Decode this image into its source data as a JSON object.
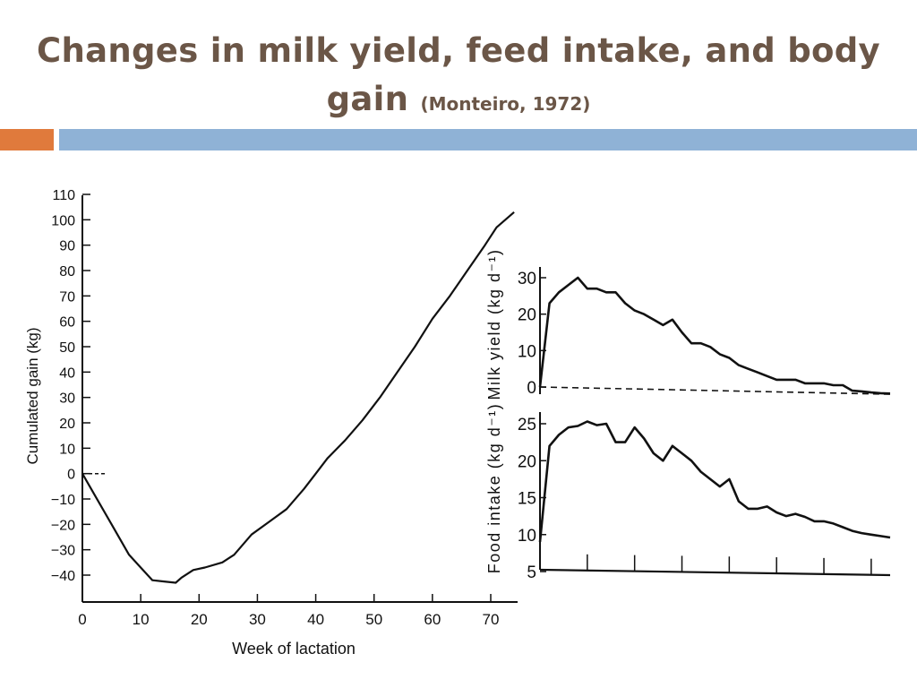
{
  "slide": {
    "title": "Changes in milk yield, feed intake, and body gain",
    "citation": "(Monteiro, 1972)",
    "colors": {
      "title": "#6b5647",
      "accent_bar": "#e07a3c",
      "main_bar": "#8fb2d6"
    }
  },
  "chart_data": [
    {
      "type": "line",
      "title": "",
      "xlabel": "Week of lactation",
      "ylabel": "Cumulated gain (kg)",
      "xlim": [
        0,
        74
      ],
      "ylim": [
        -45,
        110
      ],
      "xticks": [
        "0",
        "10",
        "20",
        "30",
        "40",
        "50",
        "60",
        "70"
      ],
      "yticks": [
        "110",
        "100",
        "90",
        "80",
        "70",
        "60",
        "50",
        "40",
        "30",
        "20",
        "10",
        "0",
        "−10",
        "−20",
        "−30",
        "−40"
      ],
      "series": [
        {
          "name": "",
          "x": [
            0,
            2,
            5,
            8,
            10,
            12,
            14,
            16,
            17,
            19,
            21,
            24,
            26,
            29,
            32,
            35,
            38,
            40,
            42,
            45,
            48,
            51,
            54,
            57,
            60,
            63,
            66,
            69,
            71,
            74
          ],
          "y": [
            0,
            -8,
            -20,
            -32,
            -37,
            -42,
            -42.5,
            -43,
            -41,
            -38,
            -37,
            -35,
            -32,
            -24,
            -19,
            -14,
            -6,
            0,
            6,
            13,
            21,
            30,
            40,
            50,
            61,
            70,
            80,
            90,
            97,
            103
          ]
        },
        {
          "name": "",
          "style": "dashed",
          "x": [
            0,
            4
          ],
          "y": [
            0,
            0
          ]
        }
      ]
    },
    {
      "type": "line",
      "title": "",
      "xlabel": "",
      "ylabel": "Milk yield (kg d⁻¹)",
      "ylim": [
        0,
        30
      ],
      "yticks": [
        "30",
        "20",
        "10",
        "0"
      ],
      "series": [
        {
          "name": "",
          "x": [
            0,
            2,
            4,
            6,
            8,
            10,
            12,
            14,
            16,
            18,
            20,
            22,
            24,
            26,
            28,
            30,
            32,
            34,
            36,
            38,
            40,
            42,
            44,
            46,
            48,
            50,
            52,
            54,
            56,
            58,
            60,
            62,
            64,
            66,
            68,
            70,
            72,
            74
          ],
          "y": [
            0,
            23,
            26,
            28,
            30,
            27,
            27,
            26,
            26,
            23,
            21,
            20,
            18.5,
            17,
            18.5,
            15,
            12,
            12,
            11,
            9,
            8,
            6,
            5,
            4,
            3,
            2,
            2,
            2,
            1,
            1,
            1,
            0.5,
            0.5,
            -1,
            -1.2,
            -1.5,
            -1.7,
            -1.8
          ]
        },
        {
          "name": "",
          "style": "dashed",
          "x": [
            0,
            74
          ],
          "y": [
            0,
            -2
          ]
        }
      ]
    },
    {
      "type": "line",
      "title": "",
      "xlabel": "",
      "ylabel": "Food intake (kg d⁻¹)",
      "ylim": [
        5,
        25
      ],
      "yticks": [
        "25",
        "20",
        "15",
        "10",
        "5"
      ],
      "series": [
        {
          "name": "",
          "x": [
            0,
            2,
            4,
            6,
            8,
            10,
            12,
            14,
            16,
            18,
            20,
            22,
            24,
            26,
            28,
            30,
            32,
            34,
            36,
            38,
            40,
            42,
            44,
            46,
            48,
            50,
            52,
            54,
            56,
            58,
            60,
            62,
            64,
            66,
            68,
            70,
            72,
            74
          ],
          "y": [
            9,
            22,
            23.5,
            24.5,
            24.7,
            25.3,
            24.8,
            25.0,
            22.5,
            22.5,
            24.5,
            23,
            21,
            20,
            22,
            21,
            20,
            18.5,
            17.5,
            16.5,
            17.5,
            14.5,
            13.5,
            13.5,
            13.8,
            13,
            12.5,
            12.8,
            12.4,
            11.8,
            11.8,
            11.5,
            11,
            10.5,
            10.2,
            10,
            9.8,
            9.6
          ]
        }
      ]
    }
  ]
}
